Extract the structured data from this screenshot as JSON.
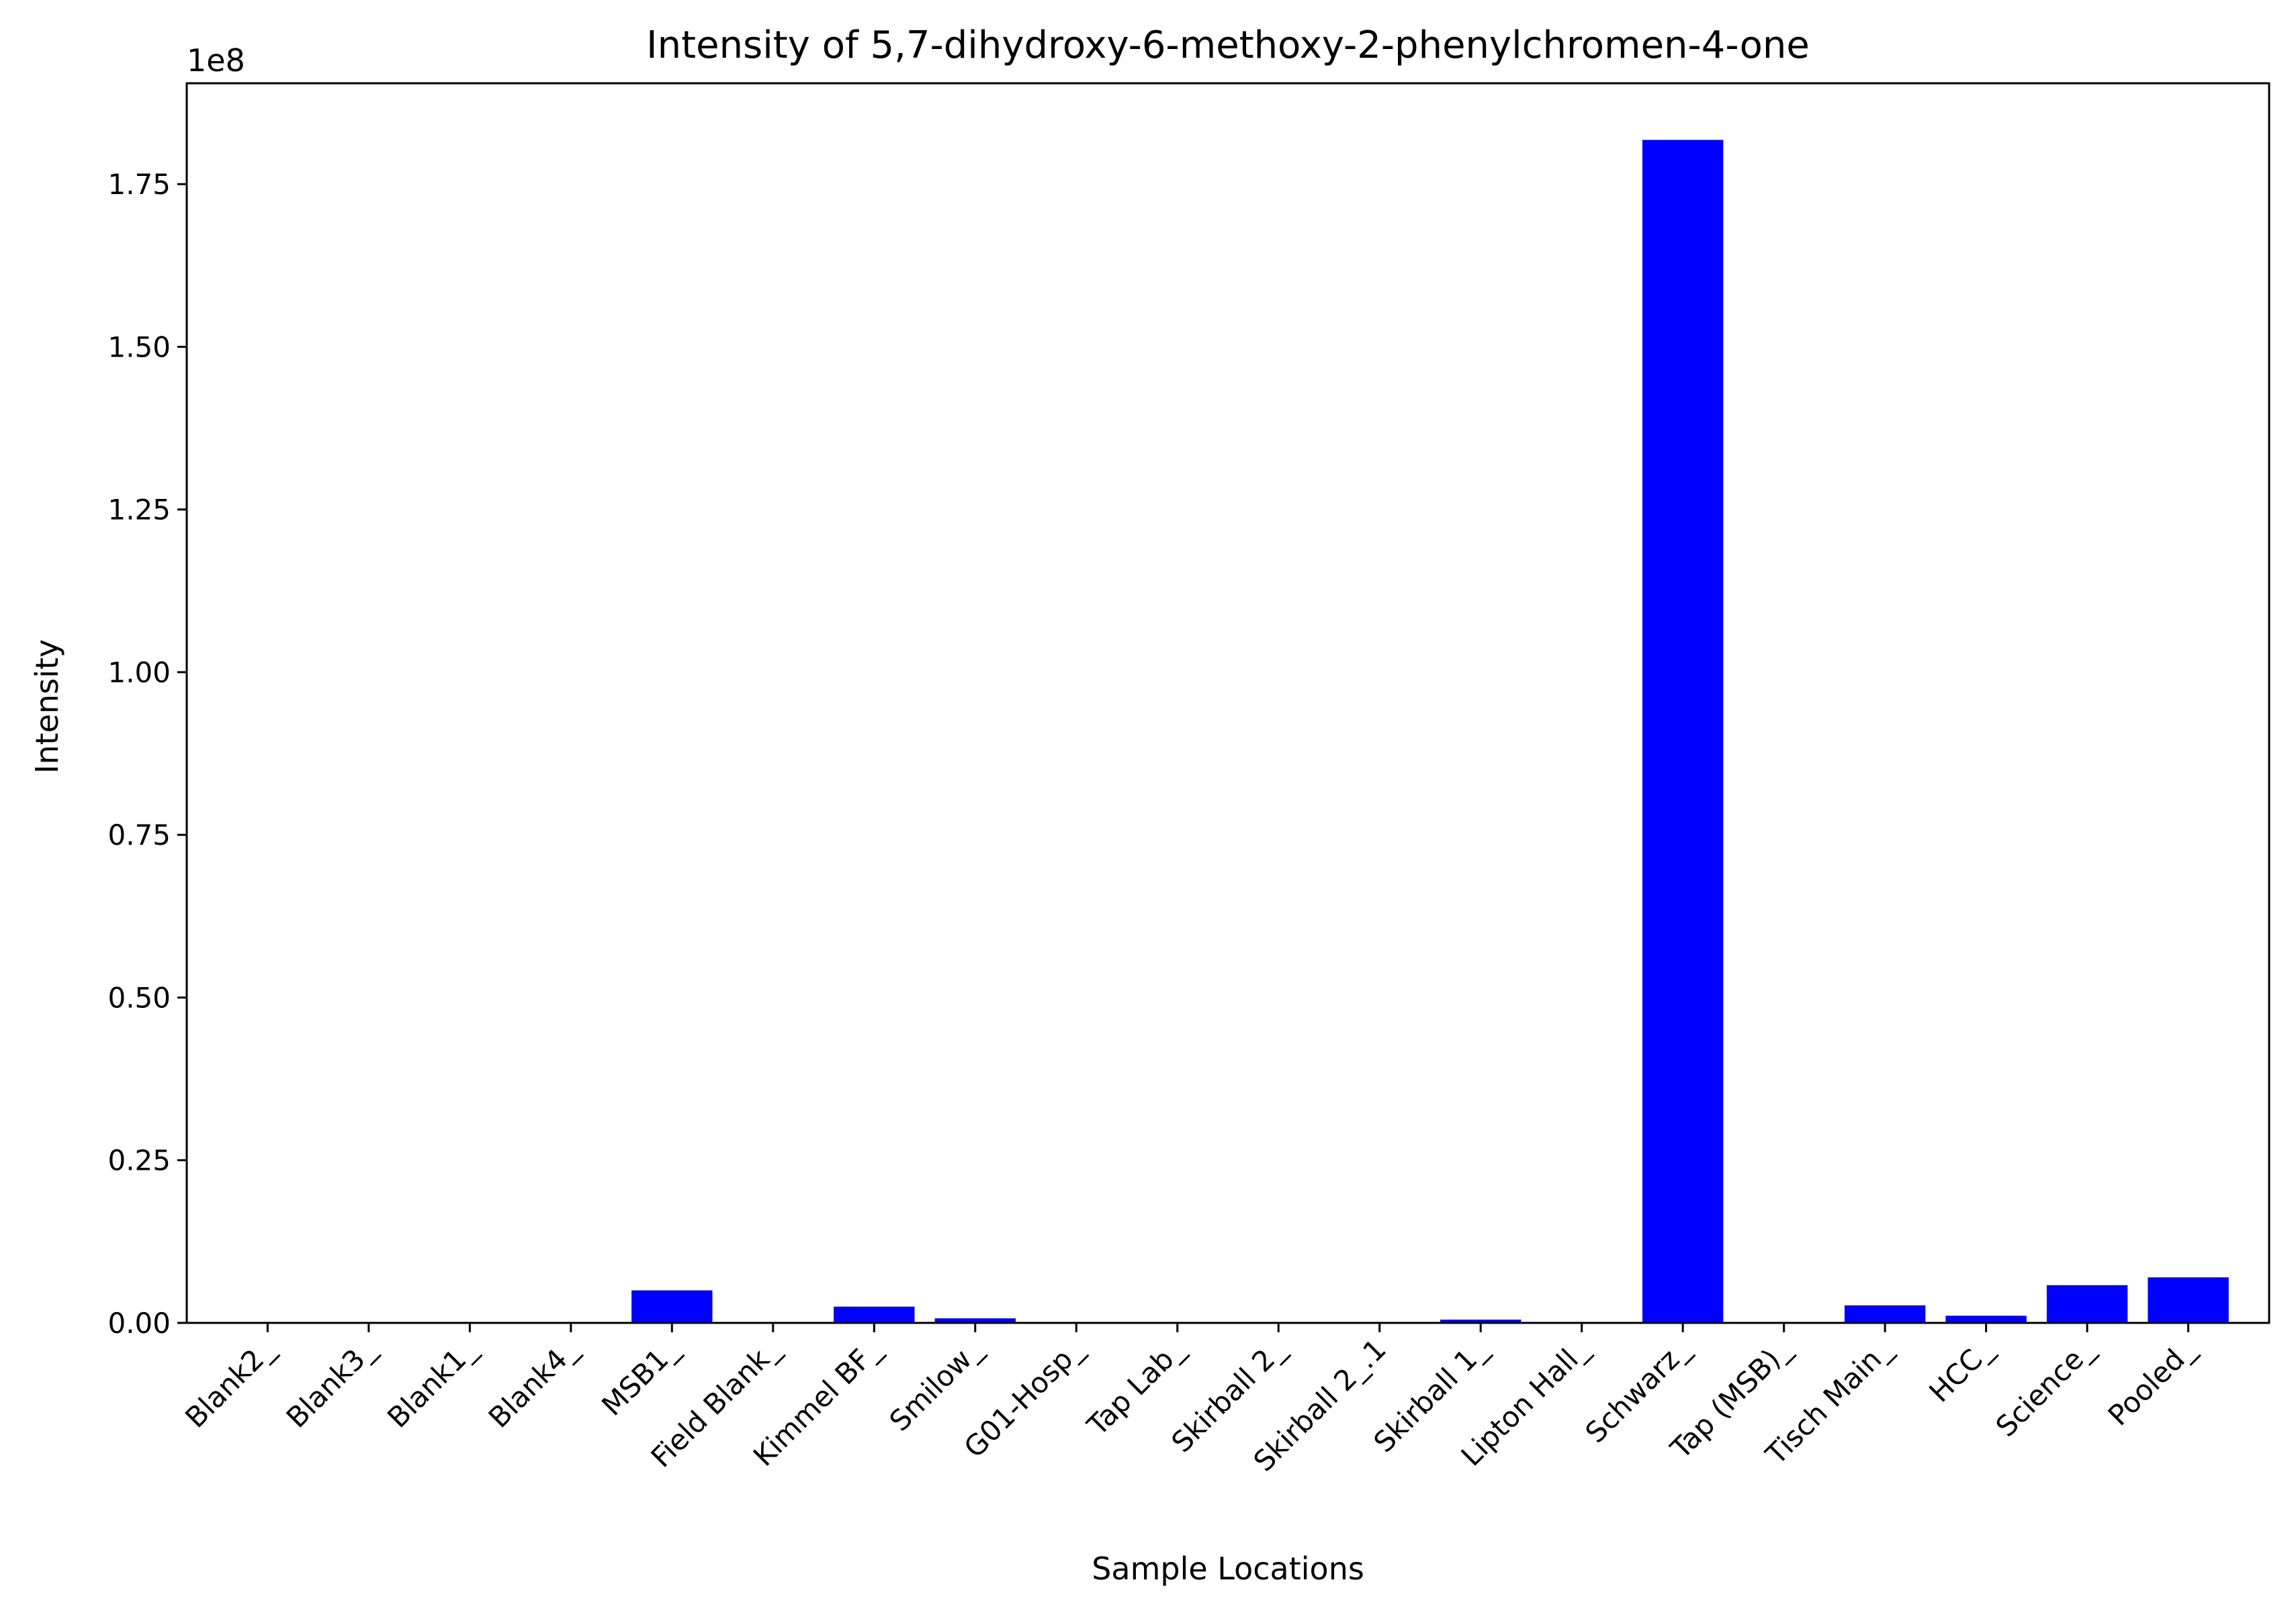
{
  "chart_data": {
    "type": "bar",
    "title": "Intensity of 5,7-dihydroxy-6-methoxy-2-phenylchromen-4-one",
    "xlabel": "Sample Locations",
    "ylabel": "Intensity",
    "y_offset_label": "1e8",
    "y_scale": 100000000,
    "ylim": [
      0,
      1.905
    ],
    "yticks": [
      0.0,
      0.25,
      0.5,
      0.75,
      1.0,
      1.25,
      1.5,
      1.75
    ],
    "ytick_labels": [
      "0.00",
      "0.25",
      "0.50",
      "0.75",
      "1.00",
      "1.25",
      "1.50",
      "1.75"
    ],
    "grid": false,
    "bar_color": "#0000ff",
    "categories": [
      "Blank2_",
      "Blank3_",
      "Blank1_",
      "Blank4_",
      "MSB1_",
      "Field Blank_",
      "Kimmel BF_",
      "Smilow_",
      "G01-Hosp_",
      "Tap Lab_",
      "Skirball 2_",
      "Skirball 2_.1",
      "Skirball 1_",
      "Lipton Hall_",
      "Schwarz_",
      "Tap (MSB)_",
      "Tisch Main_",
      "HCC_",
      "Science_",
      "Pooled_"
    ],
    "values": [
      0,
      0,
      0,
      0,
      0.05,
      0,
      0.025,
      0.007,
      0,
      0,
      0,
      0,
      0.005,
      0,
      1.818,
      0,
      0.027,
      0.011,
      0.058,
      0.07
    ]
  }
}
